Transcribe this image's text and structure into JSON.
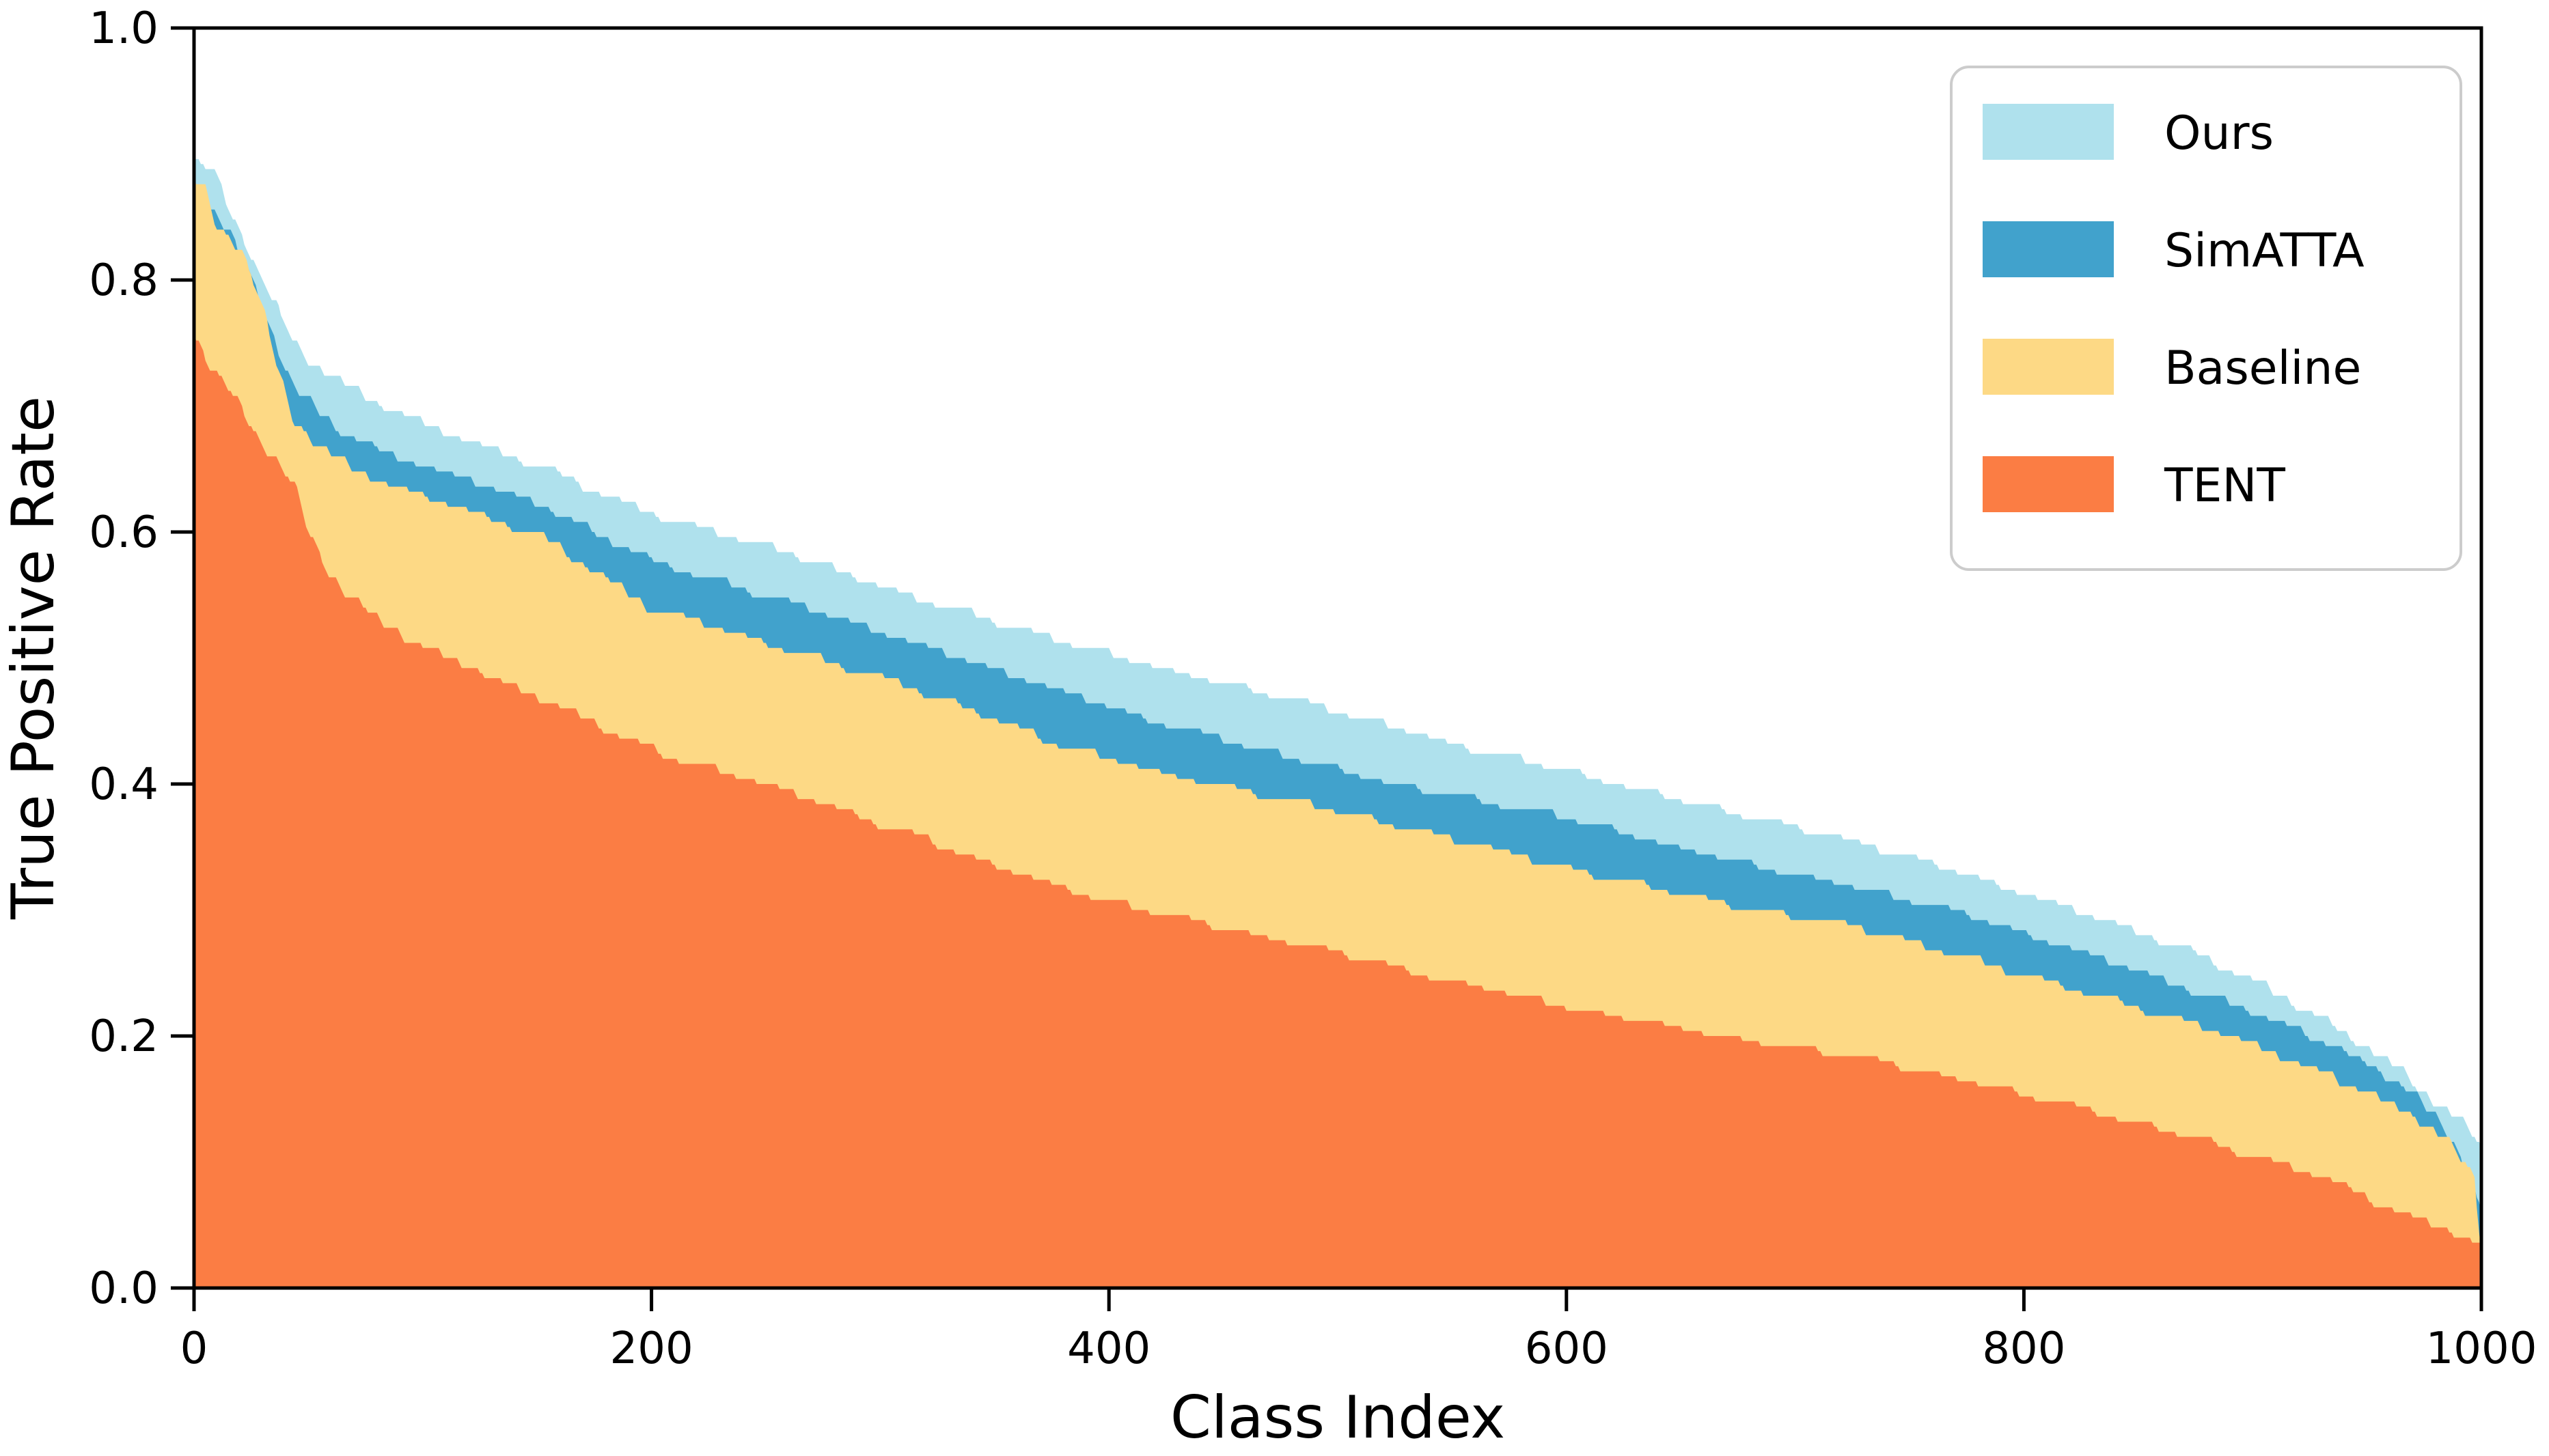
{
  "figure": {
    "xlabel": "Class Index",
    "ylabel": "True Positive Rate"
  },
  "legend": {
    "position": "upper right",
    "entries": [
      {
        "label": "Ours",
        "color": "#AFE1ED"
      },
      {
        "label": "SimATTA",
        "color": "#41A2CC"
      },
      {
        "label": "Baseline",
        "color": "#FDD985"
      },
      {
        "label": "TENT",
        "color": "#FB7D44"
      }
    ]
  },
  "chart_data": {
    "type": "area",
    "title": "",
    "xlabel": "Class Index",
    "ylabel": "True Positive Rate",
    "xlim": [
      0,
      1000
    ],
    "ylim": [
      0.0,
      1.0
    ],
    "x_ticks": [
      0,
      200,
      400,
      600,
      800,
      1000
    ],
    "x_tick_labels": [
      "0",
      "200",
      "400",
      "600",
      "800",
      "1000"
    ],
    "y_ticks": [
      0.0,
      0.2,
      0.4,
      0.6,
      0.8,
      1.0
    ],
    "y_tick_labels": [
      "0.0",
      "0.2",
      "0.4",
      "0.6",
      "0.8",
      "1.0"
    ],
    "grid": false,
    "legend_position": "upper right",
    "description": "Per-class true positive rate, each method's 1000 class TPRs sorted in descending order and drawn as overlapping filled step curves (paint order: Ours, SimATTA, Baseline, TENT).",
    "draw_order": [
      "Ours",
      "SimATTA",
      "Baseline",
      "TENT"
    ],
    "series": [
      {
        "name": "Ours",
        "color": "#AFE1ED",
        "anchors": [
          [
            0,
            0.895
          ],
          [
            4,
            0.888
          ],
          [
            9,
            0.886
          ],
          [
            14,
            0.862
          ],
          [
            20,
            0.84
          ],
          [
            28,
            0.807
          ],
          [
            38,
            0.77
          ],
          [
            44,
            0.749
          ],
          [
            55,
            0.73
          ],
          [
            65,
            0.719
          ],
          [
            80,
            0.703
          ],
          [
            100,
            0.688
          ],
          [
            125,
            0.67
          ],
          [
            150,
            0.654
          ],
          [
            175,
            0.635
          ],
          [
            199,
            0.617
          ],
          [
            230,
            0.6
          ],
          [
            260,
            0.585
          ],
          [
            300,
            0.559
          ],
          [
            340,
            0.537
          ],
          [
            381,
            0.514
          ],
          [
            420,
            0.495
          ],
          [
            450,
            0.482
          ],
          [
            483,
            0.468
          ],
          [
            520,
            0.448
          ],
          [
            555,
            0.432
          ],
          [
            590,
            0.416
          ],
          [
            650,
            0.389
          ],
          [
            690,
            0.372
          ],
          [
            725,
            0.357
          ],
          [
            770,
            0.332
          ],
          [
            805,
            0.312
          ],
          [
            841,
            0.289
          ],
          [
            870,
            0.272
          ],
          [
            900,
            0.245
          ],
          [
            930,
            0.215
          ],
          [
            950,
            0.193
          ],
          [
            965,
            0.172
          ],
          [
            975,
            0.156
          ],
          [
            985,
            0.142
          ],
          [
            992,
            0.13
          ],
          [
            997,
            0.121
          ],
          [
            1000,
            0.112
          ]
        ]
      },
      {
        "name": "SimATTA",
        "color": "#41A2CC",
        "anchors": [
          [
            0,
            0.868
          ],
          [
            5,
            0.858
          ],
          [
            9,
            0.856
          ],
          [
            14,
            0.841
          ],
          [
            20,
            0.82
          ],
          [
            28,
            0.79
          ],
          [
            38,
            0.74
          ],
          [
            44,
            0.713
          ],
          [
            55,
            0.695
          ],
          [
            65,
            0.68
          ],
          [
            80,
            0.667
          ],
          [
            100,
            0.654
          ],
          [
            125,
            0.64
          ],
          [
            150,
            0.624
          ],
          [
            175,
            0.6
          ],
          [
            199,
            0.579
          ],
          [
            230,
            0.562
          ],
          [
            260,
            0.545
          ],
          [
            300,
            0.522
          ],
          [
            340,
            0.498
          ],
          [
            381,
            0.474
          ],
          [
            420,
            0.452
          ],
          [
            450,
            0.437
          ],
          [
            483,
            0.421
          ],
          [
            520,
            0.404
          ],
          [
            555,
            0.391
          ],
          [
            590,
            0.379
          ],
          [
            650,
            0.351
          ],
          [
            690,
            0.335
          ],
          [
            725,
            0.321
          ],
          [
            770,
            0.3
          ],
          [
            805,
            0.28
          ],
          [
            841,
            0.258
          ],
          [
            870,
            0.24
          ],
          [
            900,
            0.222
          ],
          [
            930,
            0.198
          ],
          [
            950,
            0.178
          ],
          [
            965,
            0.161
          ],
          [
            975,
            0.145
          ],
          [
            985,
            0.125
          ],
          [
            992,
            0.1
          ],
          [
            997,
            0.075
          ],
          [
            1000,
            0.057
          ]
        ]
      },
      {
        "name": "Baseline",
        "color": "#FDD985",
        "anchors": [
          [
            0,
            0.879
          ],
          [
            5,
            0.87
          ],
          [
            9,
            0.846
          ],
          [
            14,
            0.836
          ],
          [
            20,
            0.828
          ],
          [
            28,
            0.79
          ],
          [
            38,
            0.72
          ],
          [
            44,
            0.688
          ],
          [
            55,
            0.668
          ],
          [
            65,
            0.655
          ],
          [
            80,
            0.642
          ],
          [
            100,
            0.629
          ],
          [
            125,
            0.615
          ],
          [
            150,
            0.6
          ],
          [
            175,
            0.57
          ],
          [
            199,
            0.541
          ],
          [
            230,
            0.525
          ],
          [
            260,
            0.508
          ],
          [
            300,
            0.487
          ],
          [
            340,
            0.459
          ],
          [
            381,
            0.431
          ],
          [
            420,
            0.412
          ],
          [
            450,
            0.4
          ],
          [
            483,
            0.388
          ],
          [
            520,
            0.372
          ],
          [
            555,
            0.356
          ],
          [
            590,
            0.34
          ],
          [
            650,
            0.314
          ],
          [
            690,
            0.3
          ],
          [
            725,
            0.289
          ],
          [
            770,
            0.266
          ],
          [
            805,
            0.248
          ],
          [
            841,
            0.229
          ],
          [
            870,
            0.214
          ],
          [
            900,
            0.195
          ],
          [
            930,
            0.173
          ],
          [
            950,
            0.156
          ],
          [
            965,
            0.143
          ],
          [
            975,
            0.132
          ],
          [
            985,
            0.115
          ],
          [
            992,
            0.1
          ],
          [
            997,
            0.088
          ],
          [
            1000,
            0.032
          ]
        ]
      },
      {
        "name": "TENT",
        "color": "#FB7D44",
        "anchors": [
          [
            0,
            0.757
          ],
          [
            5,
            0.74
          ],
          [
            9,
            0.726
          ],
          [
            14,
            0.715
          ],
          [
            20,
            0.7
          ],
          [
            28,
            0.675
          ],
          [
            38,
            0.652
          ],
          [
            44,
            0.637
          ],
          [
            50,
            0.6
          ],
          [
            58,
            0.572
          ],
          [
            65,
            0.554
          ],
          [
            80,
            0.532
          ],
          [
            100,
            0.51
          ],
          [
            125,
            0.49
          ],
          [
            150,
            0.47
          ],
          [
            175,
            0.45
          ],
          [
            199,
            0.429
          ],
          [
            230,
            0.412
          ],
          [
            260,
            0.396
          ],
          [
            300,
            0.37
          ],
          [
            340,
            0.344
          ],
          [
            381,
            0.317
          ],
          [
            420,
            0.3
          ],
          [
            450,
            0.287
          ],
          [
            483,
            0.274
          ],
          [
            520,
            0.259
          ],
          [
            555,
            0.244
          ],
          [
            590,
            0.229
          ],
          [
            650,
            0.208
          ],
          [
            690,
            0.196
          ],
          [
            725,
            0.187
          ],
          [
            770,
            0.168
          ],
          [
            805,
            0.153
          ],
          [
            841,
            0.137
          ],
          [
            870,
            0.125
          ],
          [
            900,
            0.106
          ],
          [
            930,
            0.09
          ],
          [
            950,
            0.072
          ],
          [
            965,
            0.062
          ],
          [
            975,
            0.055
          ],
          [
            985,
            0.048
          ],
          [
            992,
            0.043
          ],
          [
            997,
            0.038
          ],
          [
            1000,
            0.033
          ]
        ]
      }
    ]
  }
}
